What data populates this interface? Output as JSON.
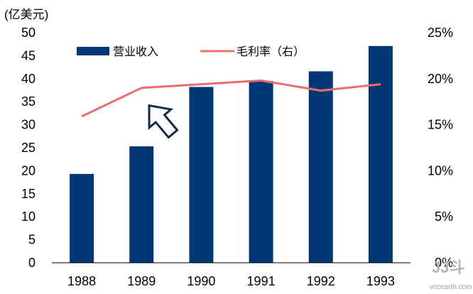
{
  "chart_data": {
    "type": "bar",
    "unit_label": "(亿美元)",
    "categories": [
      "1988",
      "1989",
      "1990",
      "1991",
      "1992",
      "1993"
    ],
    "series": [
      {
        "name": "营业收入",
        "type": "bar",
        "axis": "left",
        "values": [
          19.3,
          25.3,
          38.2,
          39.5,
          41.6,
          47.1
        ]
      },
      {
        "name": "毛利率（右）",
        "type": "line",
        "axis": "right",
        "values": [
          15.9,
          19.0,
          19.4,
          19.8,
          18.7,
          19.4
        ]
      }
    ],
    "y_left": {
      "min": 0,
      "max": 50,
      "step": 5,
      "ticks": [
        "0",
        "5",
        "10",
        "15",
        "20",
        "25",
        "30",
        "35",
        "40",
        "45",
        "50"
      ]
    },
    "y_right": {
      "min": 0,
      "max": 25,
      "step": 5,
      "ticks": [
        "0%",
        "5%",
        "10%",
        "15%",
        "20%",
        "25%"
      ]
    },
    "grid": false,
    "legend_position": "top",
    "colors": {
      "bar": "#003876",
      "line": "#f06b6e",
      "arrow": "#0f2d4a"
    },
    "annotation": "upward arrow marker",
    "watermark": {
      "logo": "JJ斗",
      "url": "vccearth.com"
    }
  }
}
